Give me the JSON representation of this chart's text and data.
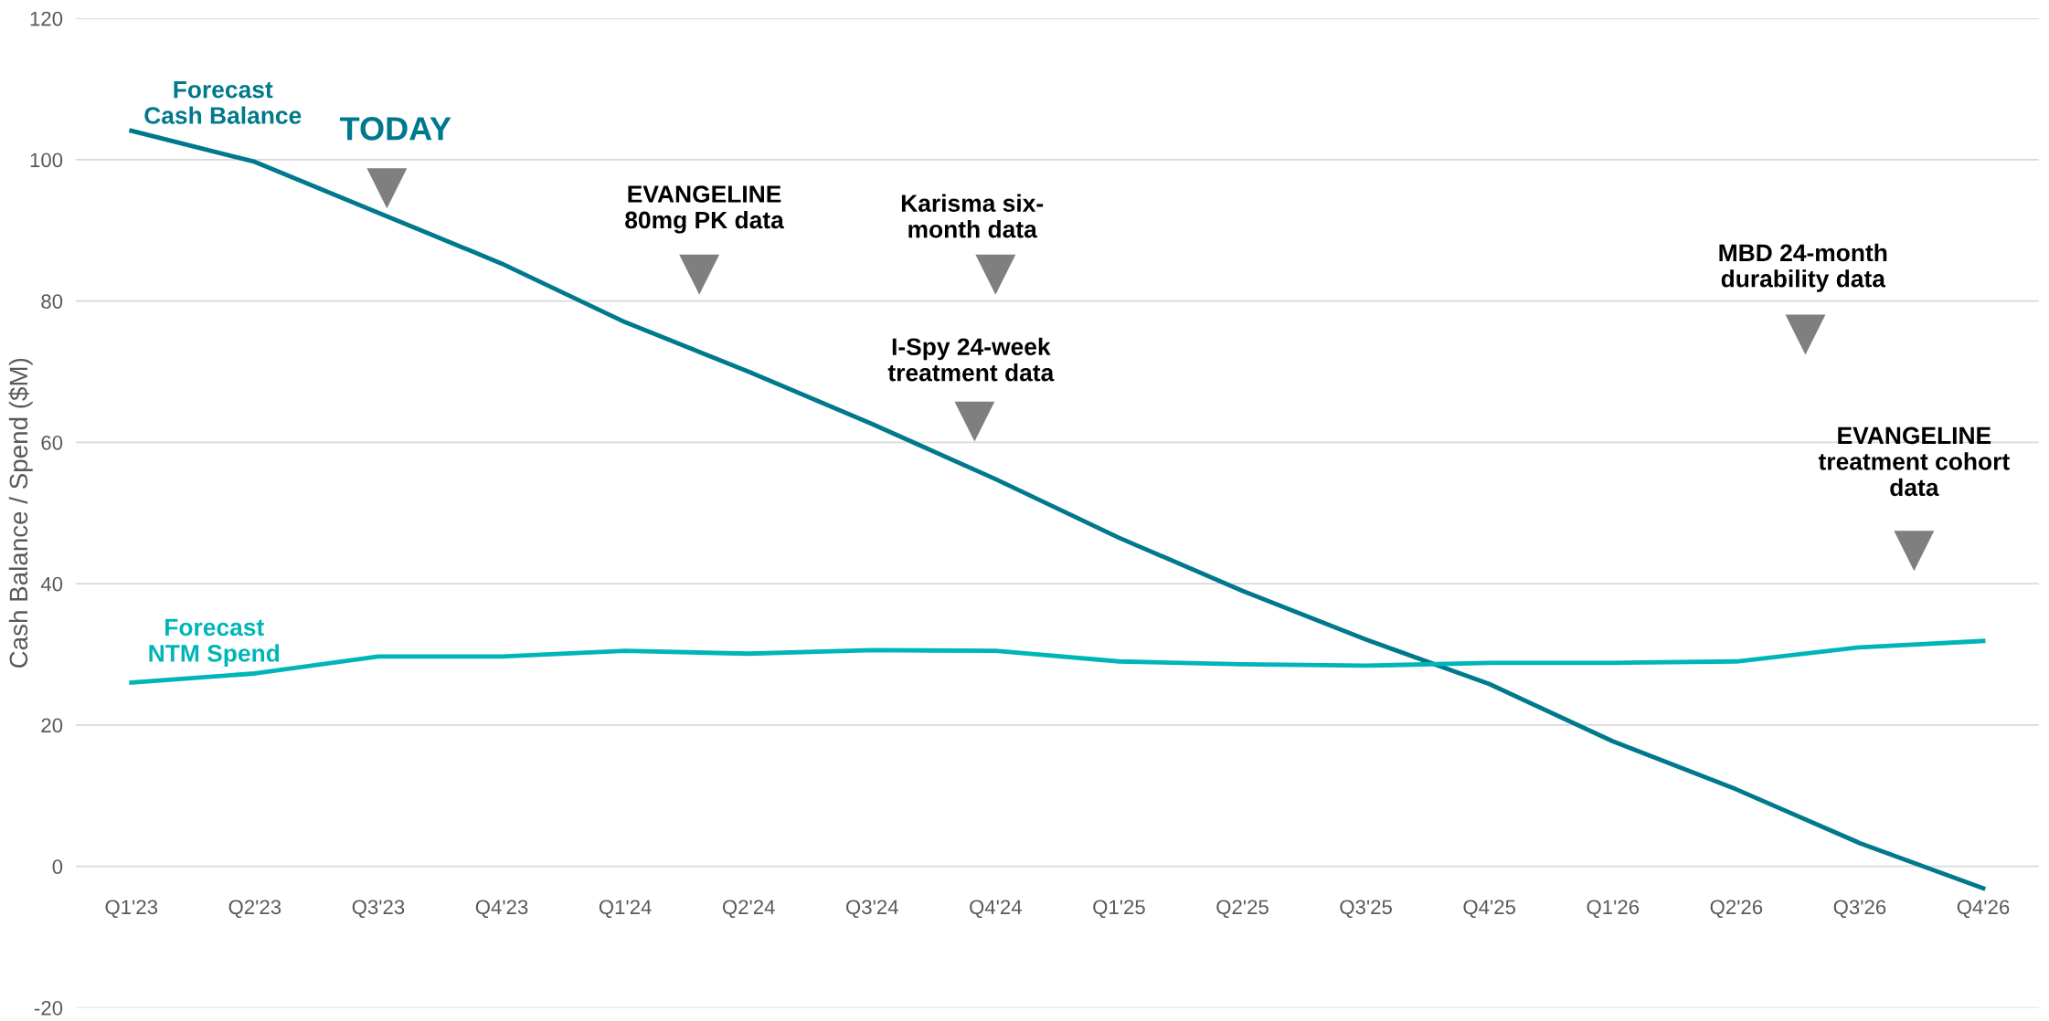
{
  "chart_data": {
    "type": "line",
    "ylabel": "Cash Balance / Spend ($M)",
    "categories": [
      "Q1'23",
      "Q2'23",
      "Q3'23",
      "Q4'23",
      "Q1'24",
      "Q2'24",
      "Q3'24",
      "Q4'24",
      "Q1'25",
      "Q2'25",
      "Q3'25",
      "Q4'25",
      "Q1'26",
      "Q2'26",
      "Q3'26",
      "Q4'26"
    ],
    "series": [
      {
        "name": "Forecast Cash Balance",
        "color": "#00798c",
        "values": [
          104.1,
          99.7,
          92.5,
          85.3,
          77.0,
          70.0,
          62.6,
          54.8,
          46.5,
          39.0,
          32.1,
          25.8,
          17.7,
          10.9,
          3.3,
          -3.1
        ]
      },
      {
        "name": "Forecast NTM Spend",
        "color": "#00b5b8",
        "values": [
          26.0,
          27.3,
          29.7,
          29.7,
          30.5,
          30.1,
          30.6,
          30.5,
          29.0,
          28.6,
          28.4,
          28.8,
          28.8,
          29.0,
          31.0,
          31.9
        ]
      }
    ],
    "annotations": [
      "TODAY",
      "EVANGELINE\n80mg PK data",
      "Karisma six-\nmonth data",
      "I-Spy 24-week\ntreatment data",
      "MBD 24-month\ndurability data",
      "EVANGELINE\ntreatment cohort\ndata"
    ],
    "ylim": [
      -20,
      120
    ],
    "yticks": [
      -20,
      0,
      20,
      40,
      60,
      80,
      100,
      120
    ],
    "grid": "y",
    "legend": false,
    "marker": "none",
    "line_style": "solid"
  }
}
